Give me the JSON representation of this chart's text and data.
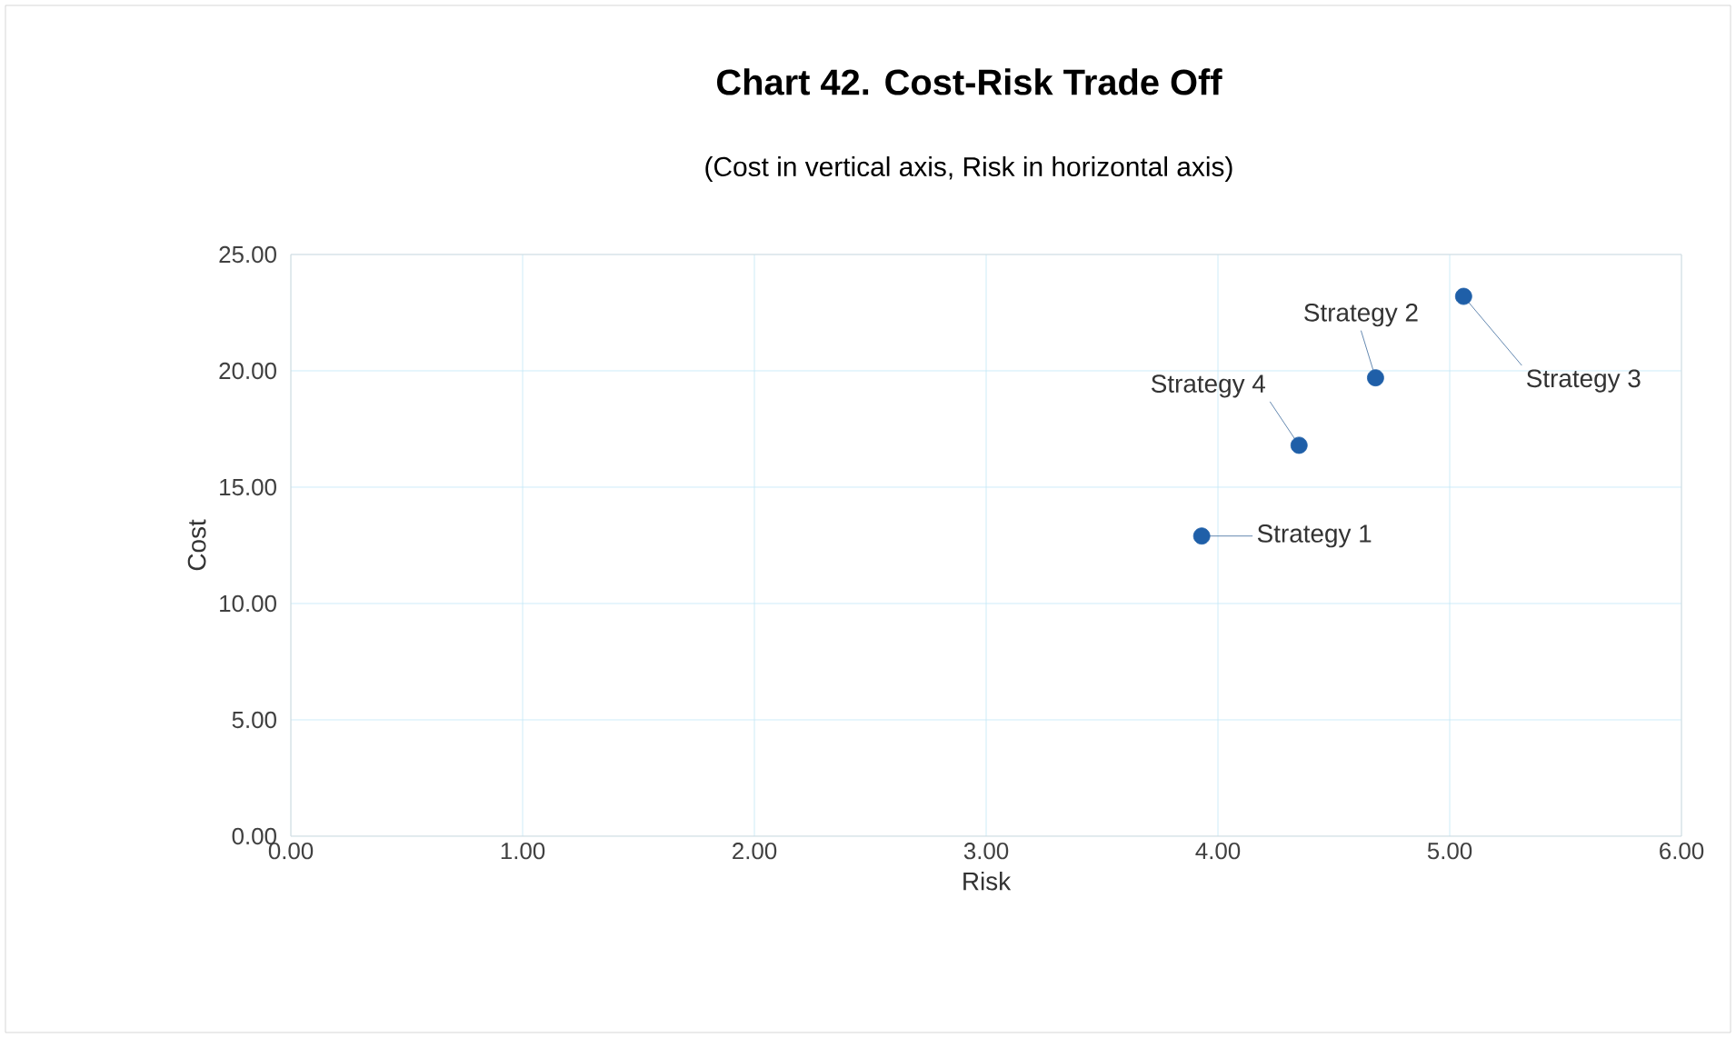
{
  "chart_data": {
    "type": "scatter",
    "title": "Chart 42. Cost-Risk Trade Off",
    "subtitle": "(Cost in vertical axis, Risk in horizontal axis)",
    "xlabel": "Risk",
    "ylabel": "Cost",
    "series": [
      {
        "name": "Strategy 1",
        "color": "#1f5fa8",
        "x": [
          3.93
        ],
        "values": [
          12.9
        ]
      },
      {
        "name": "Strategy 2",
        "color": "#1f5fa8",
        "x": [
          4.68
        ],
        "values": [
          19.7
        ]
      },
      {
        "name": "Strategy 3",
        "color": "#1f5fa8",
        "x": [
          5.06
        ],
        "values": [
          23.2
        ]
      },
      {
        "name": "Strategy 4",
        "color": "#1f5fa8",
        "x": [
          4.35
        ],
        "values": [
          16.8
        ]
      }
    ],
    "xlim": [
      0,
      6
    ],
    "ylim": [
      0,
      25
    ],
    "xticks": [
      {
        "value": 0,
        "label": "0.00"
      },
      {
        "value": 1,
        "label": "1.00"
      },
      {
        "value": 2,
        "label": "2.00"
      },
      {
        "value": 3,
        "label": "3.00"
      },
      {
        "value": 4,
        "label": "4.00"
      },
      {
        "value": 5,
        "label": "5.00"
      },
      {
        "value": 6,
        "label": "6.00"
      }
    ],
    "yticks": [
      {
        "value": 0,
        "label": "0.00"
      },
      {
        "value": 5,
        "label": "5.00"
      },
      {
        "value": 10,
        "label": "10.00"
      },
      {
        "value": 15,
        "label": "15.00"
      },
      {
        "value": 20,
        "label": "20.00"
      },
      {
        "value": 25,
        "label": "25.00"
      }
    ],
    "grid": true,
    "legend": false,
    "marker": "circle"
  }
}
